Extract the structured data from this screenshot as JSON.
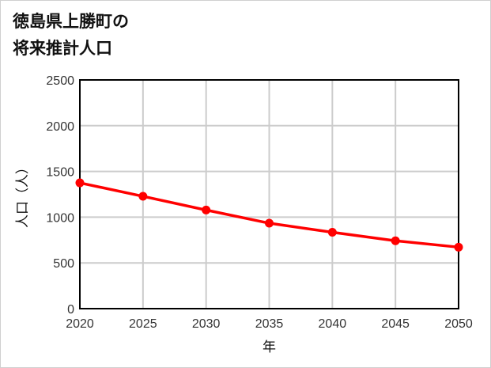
{
  "title": {
    "line1": "徳島県上勝町の",
    "line2": "将来推計人口"
  },
  "chart_data": {
    "type": "line",
    "title": "徳島県上勝町の将来推計人口",
    "xlabel": "年",
    "ylabel": "人口（人）",
    "x": [
      2020,
      2025,
      2030,
      2035,
      2040,
      2045,
      2050
    ],
    "categories": [
      "2020",
      "2025",
      "2030",
      "2035",
      "2040",
      "2045",
      "2050"
    ],
    "series": [
      {
        "name": "人口",
        "color": "#ff0000",
        "values": [
          1375,
          1228,
          1078,
          934,
          835,
          742,
          672
        ]
      }
    ],
    "ylim": [
      0,
      2500
    ],
    "yticks": [
      0,
      500,
      1000,
      1500,
      2000,
      2500
    ],
    "xlim": [
      2020,
      2050
    ],
    "grid": true,
    "legend": "none"
  }
}
